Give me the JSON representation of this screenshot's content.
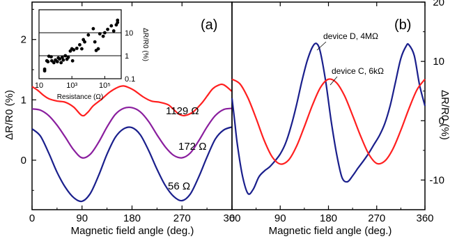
{
  "chart_data": [
    {
      "type": "line",
      "panel_label": "(a)",
      "xlabel": "Magnetic field angle (deg.)",
      "ylabel": "ΔR/R0 (%)",
      "xlim": [
        0,
        360
      ],
      "ylim": [
        -0.82,
        2.62
      ],
      "x_ticks": [
        "0",
        "90",
        "180",
        "270",
        "360"
      ],
      "y_ticks": [
        "0",
        "1",
        "2"
      ],
      "series": [
        {
          "name": "1129 Ω",
          "color": "#ff1f1f",
          "x": [
            0,
            10,
            20,
            30,
            45,
            60,
            75,
            90,
            100,
            110,
            125,
            140,
            155,
            165,
            175,
            185,
            200,
            215,
            230,
            245,
            255,
            265,
            275,
            290,
            305,
            315,
            325,
            335,
            345,
            360
          ],
          "values": [
            1.22,
            1.16,
            1.08,
            1.02,
            0.98,
            0.96,
            0.88,
            0.74,
            0.79,
            0.9,
            1.01,
            1.13,
            1.21,
            1.23,
            1.2,
            1.15,
            1.05,
            0.98,
            0.96,
            0.92,
            0.84,
            0.76,
            0.74,
            0.8,
            0.94,
            1.06,
            1.18,
            1.24,
            1.25,
            1.14
          ]
        },
        {
          "name": "172 Ω",
          "color": "#8a1e9e",
          "x": [
            0,
            15,
            30,
            45,
            60,
            75,
            90,
            105,
            120,
            135,
            150,
            165,
            180,
            195,
            210,
            225,
            240,
            255,
            270,
            285,
            300,
            315,
            330,
            345,
            360
          ],
          "values": [
            0.85,
            0.83,
            0.74,
            0.58,
            0.38,
            0.17,
            0.04,
            0.1,
            0.3,
            0.55,
            0.76,
            0.86,
            0.87,
            0.8,
            0.64,
            0.42,
            0.22,
            0.08,
            0.04,
            0.12,
            0.32,
            0.55,
            0.74,
            0.84,
            0.86
          ]
        },
        {
          "name": "56 Ω",
          "color": "#1a1f8c",
          "x": [
            0,
            15,
            30,
            45,
            60,
            75,
            90,
            105,
            120,
            135,
            150,
            165,
            180,
            195,
            210,
            225,
            240,
            255,
            270,
            285,
            300,
            315,
            330,
            345,
            360
          ],
          "values": [
            0.52,
            0.4,
            0.12,
            -0.2,
            -0.45,
            -0.62,
            -0.68,
            -0.55,
            -0.25,
            0.1,
            0.38,
            0.52,
            0.54,
            0.42,
            0.16,
            -0.15,
            -0.42,
            -0.6,
            -0.67,
            -0.56,
            -0.28,
            0.05,
            0.35,
            0.5,
            0.55
          ]
        }
      ],
      "inset": {
        "type": "scatter",
        "xlabel": "Resistance (Ω)",
        "ylabel": "ΔR/R0 (%)",
        "xscale": "log",
        "yscale": "log",
        "xlim": [
          10,
          1000000
        ],
        "ylim": [
          0.1,
          100
        ],
        "x_ticks": [
          "10",
          "10³",
          "10⁵"
        ],
        "y_ticks": [
          "0.1",
          "1",
          "10"
        ],
        "grid": "horizontal lines at 1 and 10",
        "points": [
          [
            22,
            0.26
          ],
          [
            22,
            0.22
          ],
          [
            30,
            0.6
          ],
          [
            35,
            0.55
          ],
          [
            40,
            0.95
          ],
          [
            55,
            0.9
          ],
          [
            60,
            0.6
          ],
          [
            80,
            0.5
          ],
          [
            100,
            0.65
          ],
          [
            130,
            0.55
          ],
          [
            150,
            0.8
          ],
          [
            180,
            0.72
          ],
          [
            220,
            0.5
          ],
          [
            260,
            0.85
          ],
          [
            300,
            0.65
          ],
          [
            400,
            1.0
          ],
          [
            500,
            0.7
          ],
          [
            600,
            0.85
          ],
          [
            800,
            1.6
          ],
          [
            1000,
            2.0
          ],
          [
            1100,
            0.6
          ],
          [
            1300,
            1.8
          ],
          [
            2000,
            2.1
          ],
          [
            3000,
            3.0
          ],
          [
            4000,
            2.0
          ],
          [
            5000,
            5.0
          ],
          [
            6000,
            4.0
          ],
          [
            10000,
            8.0
          ],
          [
            20000,
            15.0
          ],
          [
            25000,
            4.0
          ],
          [
            30000,
            1.7
          ],
          [
            40000,
            2.0
          ],
          [
            50000,
            9.0
          ],
          [
            80000,
            7.0
          ],
          [
            100000,
            10.0
          ],
          [
            150000,
            14.0
          ],
          [
            250000,
            20.0
          ],
          [
            350000,
            12.0
          ],
          [
            500000,
            22.0
          ],
          [
            600000,
            35.0
          ],
          [
            600000,
            28.0
          ]
        ]
      }
    },
    {
      "type": "line",
      "panel_label": "(b)",
      "xlabel": "Magnetic field angle (deg.)",
      "ylabel": "ΔR/R0 (%)",
      "xlim": [
        0,
        360
      ],
      "ylim": [
        -15,
        20
      ],
      "x_ticks": [
        "0",
        "90",
        "180",
        "270",
        "360"
      ],
      "y_ticks": [
        "-10",
        "0",
        "10",
        "20"
      ],
      "series": [
        {
          "name": "device D, 4MΩ",
          "color": "#1a1f8c",
          "x": [
            0,
            5,
            10,
            20,
            30,
            40,
            50,
            60,
            70,
            80,
            90,
            100,
            110,
            120,
            130,
            140,
            150,
            158,
            165,
            175,
            185,
            195,
            205,
            215,
            225,
            235,
            245,
            255,
            265,
            275,
            285,
            295,
            305,
            315,
            325,
            330,
            340,
            350,
            360
          ],
          "values": [
            3.8,
            0.0,
            -4.0,
            -9.5,
            -12.3,
            -11.5,
            -9.5,
            -8.5,
            -7.8,
            -6.8,
            -5.6,
            -3.8,
            -1.0,
            2.5,
            6.5,
            10.0,
            12.4,
            13.0,
            11.5,
            6.5,
            0.0,
            -5.5,
            -9.5,
            -10.3,
            -9.3,
            -8.0,
            -6.8,
            -5.5,
            -4.0,
            -2.5,
            -0.5,
            2.5,
            6.5,
            10.5,
            12.6,
            12.8,
            11.0,
            6.0,
            2.5
          ]
        },
        {
          "name": "device C, 6kΩ",
          "color": "#ff1f1f",
          "x": [
            0,
            15,
            30,
            45,
            60,
            75,
            90,
            105,
            120,
            135,
            150,
            165,
            180,
            195,
            210,
            225,
            240,
            255,
            270,
            285,
            300,
            315,
            330,
            345,
            360
          ],
          "values": [
            7.0,
            6.2,
            3.8,
            0.4,
            -3.3,
            -6.1,
            -7.3,
            -6.7,
            -4.4,
            -1.0,
            2.6,
            5.6,
            7.0,
            6.4,
            4.2,
            0.9,
            -2.6,
            -5.6,
            -7.2,
            -6.8,
            -4.8,
            -1.6,
            2.0,
            5.2,
            7.0
          ]
        }
      ]
    }
  ]
}
